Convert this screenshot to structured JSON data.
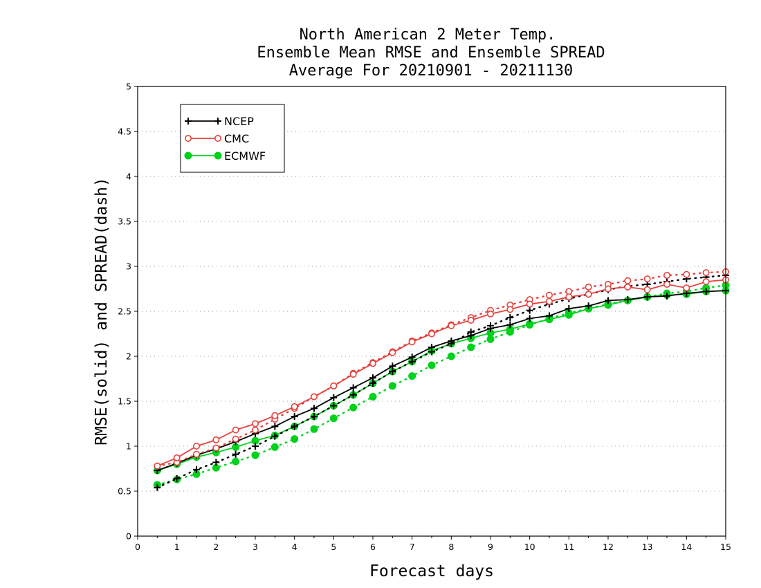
{
  "chart_data": {
    "type": "line",
    "title": [
      "North American 2 Meter Temp.",
      "Ensemble Mean RMSE and Ensemble SPREAD",
      "Average For 20210901 - 20211130"
    ],
    "xlabel": "Forecast days",
    "ylabel": "RMSE(solid) and SPREAD(dash)",
    "xlim": [
      0,
      15
    ],
    "ylim": [
      0,
      5
    ],
    "xticks": [
      "0",
      "1",
      "2",
      "3",
      "4",
      "5",
      "6",
      "7",
      "8",
      "9",
      "10",
      "11",
      "12",
      "13",
      "14",
      "15"
    ],
    "yticks": [
      "0",
      "0.5",
      "1",
      "1.5",
      "2",
      "2.5",
      "3",
      "3.5",
      "4",
      "4.5",
      "5"
    ],
    "grid": "horizontal dotted",
    "legend_position": "top-left",
    "x": [
      0.5,
      1,
      1.5,
      2,
      2.5,
      3,
      3.5,
      4,
      4.5,
      5,
      5.5,
      6,
      6.5,
      7,
      7.5,
      8,
      8.5,
      9,
      9.5,
      10,
      10.5,
      11,
      11.5,
      12,
      12.5,
      13,
      13.5,
      14,
      14.5,
      15
    ],
    "series": [
      {
        "name": "NCEP",
        "color": "#000000",
        "marker": "plus",
        "rmse": [
          0.73,
          0.81,
          0.9,
          0.97,
          1.05,
          1.14,
          1.22,
          1.33,
          1.42,
          1.54,
          1.65,
          1.76,
          1.89,
          1.99,
          2.1,
          2.17,
          2.23,
          2.31,
          2.35,
          2.42,
          2.45,
          2.53,
          2.56,
          2.62,
          2.63,
          2.66,
          2.67,
          2.7,
          2.72,
          2.73
        ],
        "spread": [
          0.54,
          0.64,
          0.74,
          0.82,
          0.91,
          1.0,
          1.11,
          1.22,
          1.33,
          1.45,
          1.57,
          1.7,
          1.83,
          1.94,
          2.05,
          2.14,
          2.27,
          2.34,
          2.43,
          2.51,
          2.58,
          2.64,
          2.69,
          2.74,
          2.78,
          2.8,
          2.83,
          2.86,
          2.88,
          2.9
        ]
      },
      {
        "name": "CMC",
        "color": "#e8403c",
        "marker": "open-circle",
        "rmse": [
          0.78,
          0.87,
          1.0,
          1.07,
          1.18,
          1.25,
          1.34,
          1.44,
          1.55,
          1.67,
          1.8,
          1.92,
          2.04,
          2.16,
          2.25,
          2.34,
          2.4,
          2.47,
          2.52,
          2.58,
          2.61,
          2.66,
          2.69,
          2.75,
          2.77,
          2.74,
          2.8,
          2.76,
          2.83,
          2.85
        ],
        "spread": [
          0.78,
          0.82,
          0.91,
          0.98,
          1.08,
          1.18,
          1.3,
          1.42,
          1.55,
          1.67,
          1.81,
          1.93,
          2.05,
          2.17,
          2.26,
          2.35,
          2.43,
          2.51,
          2.57,
          2.63,
          2.68,
          2.72,
          2.77,
          2.8,
          2.84,
          2.86,
          2.9,
          2.91,
          2.93,
          2.94
        ]
      },
      {
        "name": "ECMWF",
        "color": "#00d21c",
        "marker": "filled-circle",
        "rmse": [
          0.73,
          0.8,
          0.88,
          0.93,
          0.99,
          1.06,
          1.12,
          1.22,
          1.33,
          1.45,
          1.57,
          1.7,
          1.83,
          1.94,
          2.06,
          2.14,
          2.2,
          2.26,
          2.3,
          2.36,
          2.41,
          2.46,
          2.53,
          2.57,
          2.62,
          2.66,
          2.68,
          2.69,
          2.72,
          2.73
        ],
        "spread": [
          0.57,
          0.63,
          0.69,
          0.76,
          0.83,
          0.9,
          0.99,
          1.08,
          1.19,
          1.31,
          1.43,
          1.55,
          1.67,
          1.78,
          1.9,
          2.0,
          2.1,
          2.19,
          2.27,
          2.35,
          2.42,
          2.48,
          2.53,
          2.58,
          2.62,
          2.66,
          2.7,
          2.72,
          2.76,
          2.79
        ]
      }
    ]
  }
}
